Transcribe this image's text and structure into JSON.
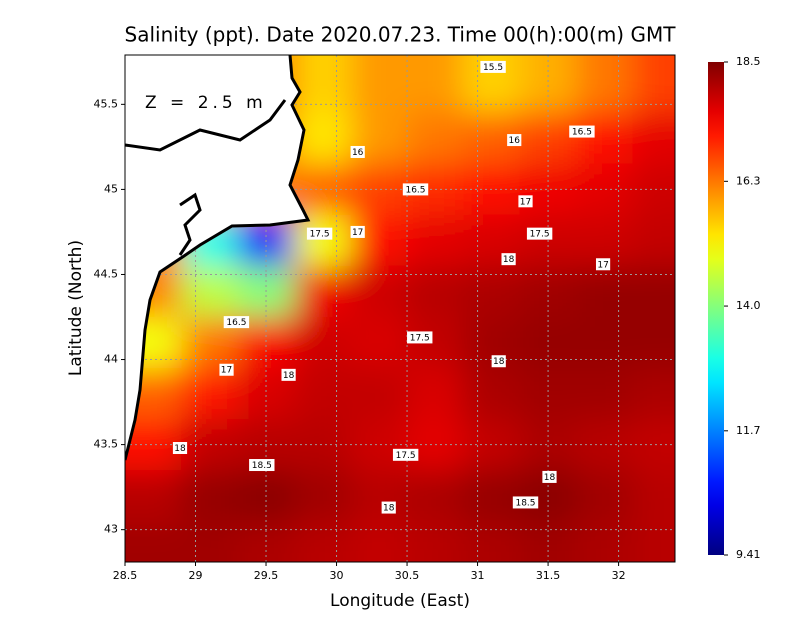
{
  "chart_data": {
    "type": "heatmap",
    "title": "Salinity (ppt). Date 2020.07.23. Time 00(h):00(m) GMT",
    "xlabel": "Longitude (East)",
    "ylabel": "Latitude (North)",
    "depth_label": "Z = 2.5 m",
    "xlim": [
      28.5,
      32.4
    ],
    "ylim": [
      42.81,
      45.79
    ],
    "xticks": [
      28.5,
      29,
      29.5,
      30,
      30.5,
      31,
      31.5,
      32
    ],
    "yticks": [
      43,
      43.5,
      44,
      44.5,
      45,
      45.5
    ],
    "grid": true,
    "colorbar": {
      "lim": [
        9.41,
        18.5
      ],
      "ticks": [
        9.41,
        11.7,
        {
          "value": 14,
          "label": "14.0"
        },
        16.3,
        18.5
      ]
    },
    "field": {
      "lons": [
        28.7,
        29.1,
        29.5,
        29.9,
        30.3,
        30.7,
        31.1,
        31.5,
        31.9,
        32.3
      ],
      "lats": [
        45.6,
        45.3,
        45.0,
        44.7,
        44.4,
        44.1,
        43.8,
        43.5,
        43.2,
        42.9
      ],
      "values": [
        [
          null,
          null,
          null,
          15.5,
          16.0,
          16.0,
          15.5,
          15.8,
          16.3,
          16.8
        ],
        [
          null,
          null,
          null,
          15.3,
          16.0,
          16.3,
          16.5,
          16.8,
          17.3,
          17.6
        ],
        [
          null,
          null,
          null,
          16.5,
          16.8,
          17.0,
          17.3,
          17.5,
          17.6,
          17.8
        ],
        [
          null,
          13,
          10.5,
          15,
          17.3,
          17.6,
          17.7,
          17.8,
          17.8,
          17.9
        ],
        [
          null,
          14.5,
          14,
          17.5,
          17.8,
          18.0,
          18.1,
          18.2,
          18.3,
          18.3
        ],
        [
          15,
          16.3,
          17.4,
          17.8,
          17.7,
          17.9,
          18.2,
          18.3,
          18.3,
          18.3
        ],
        [
          16.5,
          17.2,
          17.7,
          17.9,
          17.9,
          17.7,
          18.1,
          18.2,
          18.2,
          18.1
        ],
        [
          17.3,
          17.9,
          18.0,
          18.0,
          17.8,
          17.6,
          17.9,
          18.1,
          18.0,
          17.9
        ],
        [
          18.0,
          18.3,
          18.4,
          18.2,
          18.0,
          18.1,
          18.3,
          18.4,
          18.2,
          18.0
        ],
        [
          18.2,
          18.2,
          18.1,
          18.0,
          17.9,
          18.0,
          18.1,
          18.2,
          18.1,
          18.0
        ]
      ]
    },
    "contour_labels": [
      {
        "text": "15.5",
        "x": 31.11,
        "y": 45.72
      },
      {
        "text": "16.5",
        "x": 31.74,
        "y": 45.34
      },
      {
        "text": "16",
        "x": 31.26,
        "y": 45.29
      },
      {
        "text": "16",
        "x": 30.15,
        "y": 45.22
      },
      {
        "text": "17",
        "x": 31.34,
        "y": 44.93
      },
      {
        "text": "16.5",
        "x": 30.56,
        "y": 45.0
      },
      {
        "text": "17.5",
        "x": 29.88,
        "y": 44.74
      },
      {
        "text": "17",
        "x": 30.15,
        "y": 44.75
      },
      {
        "text": "17.5",
        "x": 31.44,
        "y": 44.74
      },
      {
        "text": "18",
        "x": 31.22,
        "y": 44.59
      },
      {
        "text": "17",
        "x": 31.89,
        "y": 44.56
      },
      {
        "text": "16.5",
        "x": 29.29,
        "y": 44.22
      },
      {
        "text": "17.5",
        "x": 30.59,
        "y": 44.13
      },
      {
        "text": "18",
        "x": 31.15,
        "y": 43.99
      },
      {
        "text": "17",
        "x": 29.22,
        "y": 43.94
      },
      {
        "text": "18",
        "x": 29.66,
        "y": 43.91
      },
      {
        "text": "17.5",
        "x": 30.49,
        "y": 43.44
      },
      {
        "text": "18.5",
        "x": 29.47,
        "y": 43.38
      },
      {
        "text": "18",
        "x": 31.51,
        "y": 43.31
      },
      {
        "text": "18.5",
        "x": 31.34,
        "y": 43.16
      },
      {
        "text": "18",
        "x": 30.37,
        "y": 43.13
      },
      {
        "text": "18",
        "x": 28.89,
        "y": 43.48
      }
    ]
  }
}
